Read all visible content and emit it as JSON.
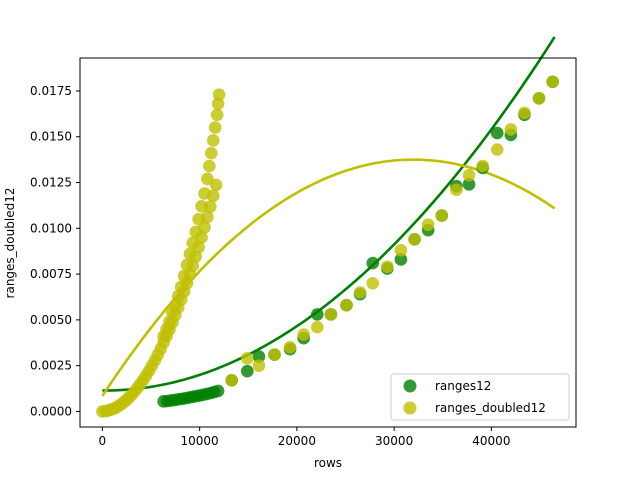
{
  "chart_data": {
    "type": "scatter",
    "xlabel": "rows",
    "ylabel": "ranges_doubled12",
    "xlim": [
      -2300,
      48700
    ],
    "ylim": [
      -0.00085,
      0.0193
    ],
    "x_ticks": [
      0,
      10000,
      20000,
      30000,
      40000
    ],
    "x_tick_labels": [
      "0",
      "10000",
      "20000",
      "30000",
      "40000"
    ],
    "y_ticks": [
      0.0,
      0.0025,
      0.005,
      0.0075,
      0.01,
      0.0125,
      0.015,
      0.0175
    ],
    "y_tick_labels": [
      "0.0000",
      "0.0025",
      "0.0050",
      "0.0075",
      "0.0100",
      "0.0125",
      "0.0150",
      "0.0175"
    ],
    "grid": false,
    "legend_position": "lower-right",
    "series": [
      {
        "name": "ranges12",
        "color": "#008000",
        "points": [
          [
            6300,
            0.00055
          ],
          [
            6700,
            0.00057
          ],
          [
            7100,
            0.0006
          ],
          [
            7500,
            0.00063
          ],
          [
            7900,
            0.00067
          ],
          [
            8300,
            0.0007
          ],
          [
            8700,
            0.00074
          ],
          [
            9100,
            0.00078
          ],
          [
            9500,
            0.00082
          ],
          [
            9900,
            0.00086
          ],
          [
            10300,
            0.0009
          ],
          [
            10700,
            0.00095
          ],
          [
            11100,
            0.001
          ],
          [
            11500,
            0.00106
          ],
          [
            11900,
            0.00112
          ],
          [
            13300,
            0.0017
          ],
          [
            14900,
            0.0022
          ],
          [
            16100,
            0.003
          ],
          [
            17700,
            0.0031
          ],
          [
            19300,
            0.0034
          ],
          [
            20700,
            0.004
          ],
          [
            22100,
            0.0053
          ],
          [
            23500,
            0.0053
          ],
          [
            25100,
            0.0058
          ],
          [
            26500,
            0.0064
          ],
          [
            27800,
            0.0081
          ],
          [
            29300,
            0.0078
          ],
          [
            30700,
            0.0083
          ],
          [
            32100,
            0.0094
          ],
          [
            33500,
            0.0099
          ],
          [
            34900,
            0.0107
          ],
          [
            36400,
            0.0123
          ],
          [
            37700,
            0.0124
          ],
          [
            39100,
            0.0133
          ],
          [
            40600,
            0.0152
          ],
          [
            42000,
            0.0151
          ],
          [
            43400,
            0.0162
          ],
          [
            44900,
            0.0171
          ],
          [
            46300,
            0.018
          ]
        ],
        "fit": {
          "degree": 2,
          "coefficients": [
            0.001143,
            -5.2e-09,
            9.04e-12
          ],
          "x_range": [
            0,
            46500
          ]
        }
      },
      {
        "name": "ranges_doubled12",
        "color": "#bfbf00",
        "points": [
          [
            0,
            0.0
          ],
          [
            300,
            2e-05
          ],
          [
            600,
            5e-05
          ],
          [
            900,
            0.0001
          ],
          [
            1200,
            0.00016
          ],
          [
            1500,
            0.00024
          ],
          [
            1800,
            0.00034
          ],
          [
            2100,
            0.00046
          ],
          [
            2400,
            0.00059
          ],
          [
            2700,
            0.00074
          ],
          [
            3000,
            0.0009
          ],
          [
            3300,
            0.00108
          ],
          [
            3600,
            0.00128
          ],
          [
            3900,
            0.00149
          ],
          [
            4200,
            0.00172
          ],
          [
            4500,
            0.00196
          ],
          [
            4800,
            0.00222
          ],
          [
            5100,
            0.0025
          ],
          [
            5400,
            0.00279
          ],
          [
            5700,
            0.0031
          ],
          [
            6000,
            0.00342
          ],
          [
            6300,
            0.00376
          ],
          [
            6600,
            0.00411
          ],
          [
            6900,
            0.00448
          ],
          [
            7200,
            0.00486
          ],
          [
            7500,
            0.00526
          ],
          [
            7800,
            0.00567
          ],
          [
            8100,
            0.0061
          ],
          [
            8400,
            0.00654
          ],
          [
            8700,
            0.007
          ],
          [
            9000,
            0.00747
          ],
          [
            9300,
            0.00796
          ],
          [
            9600,
            0.00846
          ],
          [
            9900,
            0.00897
          ],
          [
            10200,
            0.0095
          ],
          [
            10500,
            0.01005
          ],
          [
            10800,
            0.01061
          ],
          [
            11100,
            0.01118
          ],
          [
            11400,
            0.01177
          ],
          [
            11700,
            0.01237
          ],
          [
            12000,
            0.0173
          ],
          [
            11900,
            0.0168
          ],
          [
            11800,
            0.0162
          ],
          [
            11600,
            0.0155
          ],
          [
            11400,
            0.0148
          ],
          [
            11200,
            0.0141
          ],
          [
            11000,
            0.0134
          ],
          [
            10800,
            0.0127
          ],
          [
            10500,
            0.0119
          ],
          [
            10200,
            0.0112
          ],
          [
            9900,
            0.0105
          ],
          [
            9600,
            0.0098
          ],
          [
            9300,
            0.0092
          ],
          [
            9000,
            0.0086
          ],
          [
            8700,
            0.008
          ],
          [
            8400,
            0.0074
          ],
          [
            8100,
            0.0068
          ],
          [
            7800,
            0.0063
          ],
          [
            7500,
            0.0058
          ],
          [
            7200,
            0.0054
          ],
          [
            6900,
            0.0049
          ],
          [
            6600,
            0.0045
          ],
          [
            6300,
            0.0041
          ],
          [
            13300,
            0.0017
          ],
          [
            14900,
            0.0029
          ],
          [
            16100,
            0.0025
          ],
          [
            17700,
            0.0031
          ],
          [
            19300,
            0.0035
          ],
          [
            20700,
            0.0042
          ],
          [
            22100,
            0.0046
          ],
          [
            23500,
            0.0053
          ],
          [
            25100,
            0.0058
          ],
          [
            26500,
            0.0065
          ],
          [
            27800,
            0.007
          ],
          [
            29300,
            0.0079
          ],
          [
            30700,
            0.0088
          ],
          [
            32100,
            0.0094
          ],
          [
            33500,
            0.0102
          ],
          [
            34900,
            0.0107
          ],
          [
            36400,
            0.0121
          ],
          [
            37700,
            0.0129
          ],
          [
            39100,
            0.0134
          ],
          [
            40600,
            0.0143
          ],
          [
            42000,
            0.0154
          ],
          [
            43400,
            0.0163
          ],
          [
            44900,
            0.0171
          ],
          [
            46300,
            0.018
          ]
        ],
        "fit": {
          "degree": 2,
          "coefficients": [
            0.00085,
            8.07e-07,
            -1.262e-11
          ],
          "x_range": [
            0,
            46500
          ]
        }
      }
    ]
  }
}
